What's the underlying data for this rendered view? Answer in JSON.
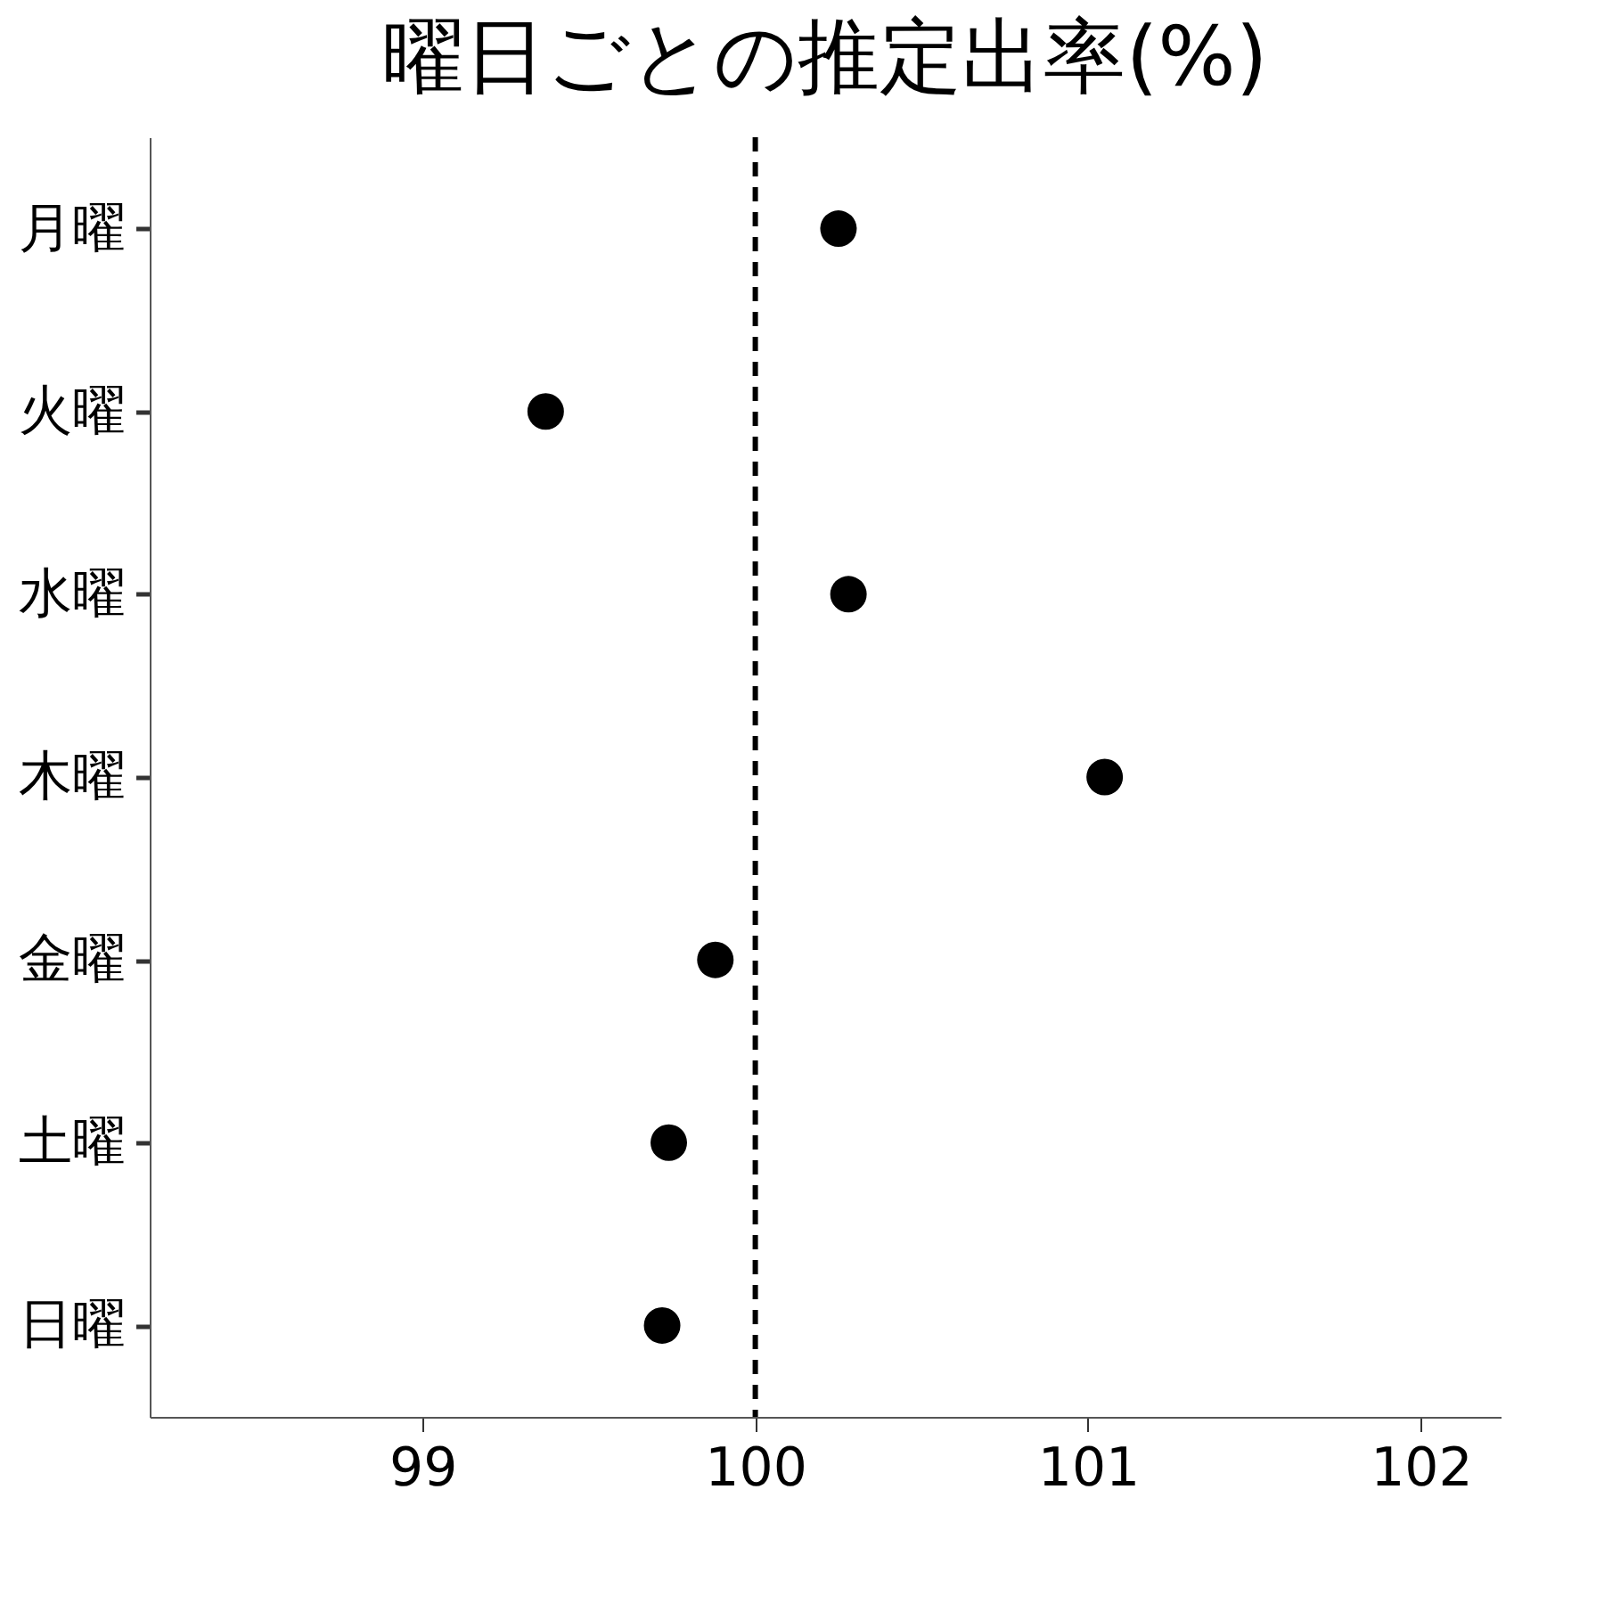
{
  "chart_data": {
    "type": "scatter",
    "title": "曜日ごとの推定出率(%)",
    "categories": [
      "月曜",
      "火曜",
      "水曜",
      "木曜",
      "金曜",
      "土曜",
      "日曜"
    ],
    "orientation": "horizontal",
    "series": [
      {
        "color": "#000000",
        "values": [
          100.25,
          99.37,
          100.28,
          101.05,
          99.88,
          99.74,
          99.72
        ]
      }
    ],
    "xlim": [
      98.18,
      102.24
    ],
    "xticks": [
      99,
      100,
      101,
      102
    ],
    "ref_lines": [
      {
        "axis": "x",
        "value": 100,
        "line_style": "dashed",
        "color": "#000000"
      }
    ],
    "marker": "circle",
    "grid": false,
    "legend": false
  }
}
